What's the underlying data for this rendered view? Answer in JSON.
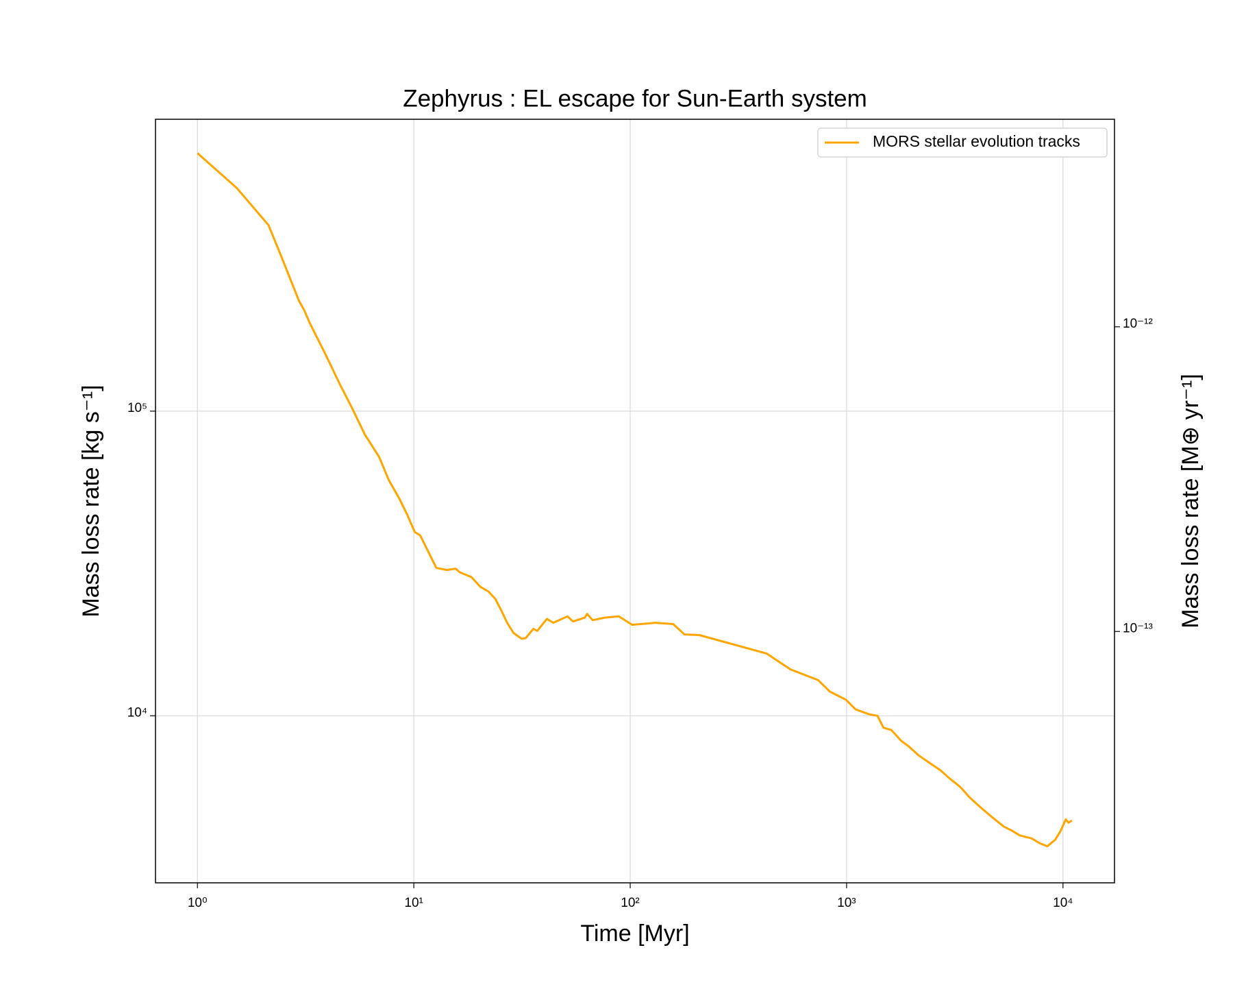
{
  "chart_data": {
    "type": "line",
    "title": "Zephyrus : EL escape for Sun-Earth system",
    "x_label": "Time [Myr]",
    "y_label": "Mass loss rate [kg s⁻¹]",
    "y2_label": "Mass loss rate [M⊕ yr⁻¹]",
    "x_scale": "log",
    "y_scale": "log",
    "y2_scale": "log",
    "grid": true,
    "legend": "upper right",
    "xlim": [
      0.64,
      17300
    ],
    "ylim": [
      2830,
      908000
    ],
    "y2lim": [
      1.496e-14,
      4.8e-12
    ],
    "xticks": [
      {
        "value": 1,
        "label": "10⁰"
      },
      {
        "value": 10,
        "label": "10¹"
      },
      {
        "value": 100,
        "label": "10²"
      },
      {
        "value": 1000,
        "label": "10³"
      },
      {
        "value": 10000,
        "label": "10⁴"
      }
    ],
    "yticks": [
      {
        "value": 10000,
        "label": "10⁴"
      },
      {
        "value": 100000,
        "label": "10⁵"
      }
    ],
    "y2ticks": [
      {
        "value": 1e-13,
        "label": "10⁻¹³"
      },
      {
        "value": 1e-12,
        "label": "10⁻¹²"
      }
    ],
    "x": [
      1,
      1.52,
      2.13,
      2.42,
      2.94,
      3.11,
      3.3,
      3.9,
      4.54,
      5.16,
      5.95,
      6.92,
      7.66,
      8.55,
      9.3,
      10.1,
      10.7,
      12.7,
      14.2,
      15.6,
      16.3,
      18.5,
      20.3,
      22.1,
      23.8,
      25.5,
      27.0,
      28.9,
      31.5,
      32.9,
      35.7,
      37.2,
      41.2,
      44.1,
      51.3,
      54.4,
      61.7,
      63.2,
      67.1,
      76.2,
      88.6,
      102,
      121,
      131,
      158,
      178,
      209,
      428,
      550,
      738,
      838,
      991,
      1100,
      1280,
      1390,
      1480,
      1610,
      1790,
      1940,
      2150,
      2400,
      2720,
      2960,
      3360,
      3700,
      4140,
      4700,
      5330,
      5800,
      6310,
      7160,
      7790,
      8470,
      9210,
      9770,
      10300,
      10600,
      11000
    ],
    "series": [
      {
        "name": "MORS stellar evolution tracks",
        "color": "#ffa500",
        "values": [
          703000,
          540000,
          408000,
          327000,
          231000,
          215000,
          195000,
          154000,
          123000,
          103000,
          83600,
          70700,
          59400,
          51800,
          45900,
          40100,
          39100,
          30600,
          30100,
          30400,
          29600,
          28500,
          26500,
          25600,
          24200,
          22000,
          20200,
          18700,
          17900,
          18000,
          19300,
          19000,
          20800,
          20200,
          21200,
          20400,
          21000,
          21600,
          20600,
          21000,
          21200,
          19900,
          20100,
          20200,
          20000,
          18500,
          18400,
          16000,
          14200,
          13100,
          12000,
          11300,
          10500,
          10100,
          10000,
          9140,
          8980,
          8270,
          7930,
          7420,
          7030,
          6620,
          6270,
          5830,
          5400,
          5020,
          4650,
          4330,
          4200,
          4050,
          3960,
          3820,
          3730,
          3920,
          4200,
          4570,
          4460,
          4530
        ]
      }
    ]
  }
}
